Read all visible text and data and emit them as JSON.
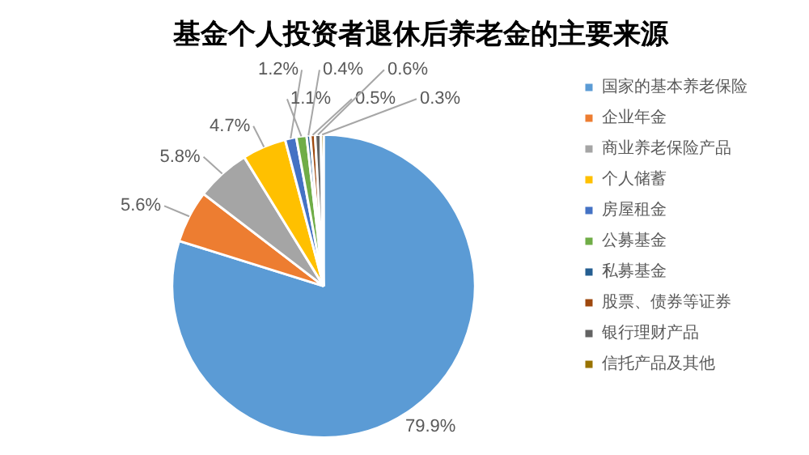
{
  "chart_data": {
    "type": "pie",
    "title": "基金个人投资者退休后养老金的主要来源",
    "categories": [
      "国家的基本养老保险",
      "企业年金",
      "商业养老保险产品",
      "个人储蓄",
      "房屋租金",
      "公募基金",
      "私募基金",
      "股票、债券等证券",
      "银行理财产品",
      "信托产品及其他"
    ],
    "values": [
      79.9,
      5.6,
      5.8,
      4.7,
      1.2,
      1.1,
      0.4,
      0.5,
      0.6,
      0.3
    ],
    "colors": [
      "#5b9bd5",
      "#ed7d31",
      "#a5a5a5",
      "#ffc000",
      "#4472c4",
      "#70ad47",
      "#255e91",
      "#9e480e",
      "#636363",
      "#997300"
    ],
    "value_labels": [
      "79.9%",
      "5.6%",
      "5.8%",
      "4.7%",
      "1.2%",
      "1.1%",
      "0.4%",
      "0.5%",
      "0.6%",
      "0.3%"
    ],
    "legend": "right"
  }
}
